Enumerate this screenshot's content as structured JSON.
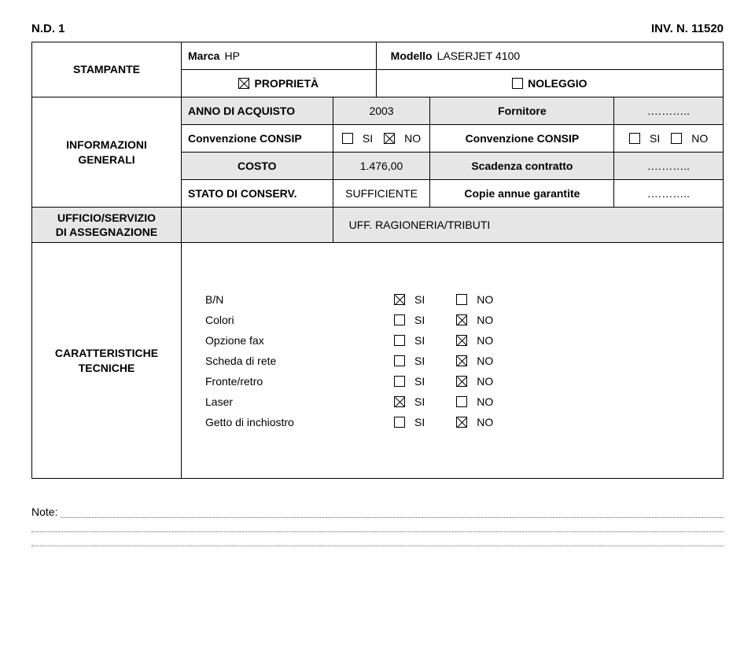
{
  "header": {
    "left": "N.D. 1",
    "right": "INV. N. 11520"
  },
  "sidebar": {
    "s1": "STAMPANTE",
    "s2_line1": "INFORMAZIONI",
    "s2_line2": "GENERALI",
    "s3_line1": "UFFICIO/SERVIZIO",
    "s3_line2": "DI ASSEGNAZIONE",
    "s4_line1": "CARATTERISTICHE",
    "s4_line2": "TECNICHE"
  },
  "r1": {
    "marca_lbl": "Marca",
    "marca_val": "HP",
    "modello_lbl": "Modello",
    "modello_val": "LASERJET 4100"
  },
  "r2": {
    "prop": "PROPRIETÀ",
    "nol": "NOLEGGIO"
  },
  "r3": {
    "anno_lbl": "ANNO DI ACQUISTO",
    "anno_val": "2003",
    "fornitore_lbl": "Fornitore",
    "fornitore_val": ".……….."
  },
  "r4": {
    "conv_lbl": "Convenzione CONSIP",
    "si": "SI",
    "no": "NO"
  },
  "r5": {
    "costo_lbl": "COSTO",
    "costo_val": "1.476,00",
    "scad_lbl": "Scadenza contratto",
    "scad_val": ".……….."
  },
  "r6": {
    "stato_lbl": "STATO DI CONSERV.",
    "stato_val": "SUFFICIENTE",
    "copie_lbl": "Copie annue garantite",
    "copie_val": ".……….."
  },
  "r7": {
    "uff": "UFF. RAGIONERIA/TRIBUTI"
  },
  "chars": {
    "si": "SI",
    "no": "NO",
    "rows": [
      {
        "label": "B/N",
        "si": true,
        "no": false
      },
      {
        "label": "Colori",
        "si": false,
        "no": true
      },
      {
        "label": "Opzione fax",
        "si": false,
        "no": true
      },
      {
        "label": "Scheda di rete",
        "si": false,
        "no": true
      },
      {
        "label": "Fronte/retro",
        "si": false,
        "no": true
      },
      {
        "label": "Laser",
        "si": true,
        "no": false
      },
      {
        "label": "Getto di inchiostro",
        "si": false,
        "no": true
      }
    ]
  },
  "notes": {
    "label": "Note:"
  },
  "colors": {
    "shade": "#e6e6e6"
  }
}
